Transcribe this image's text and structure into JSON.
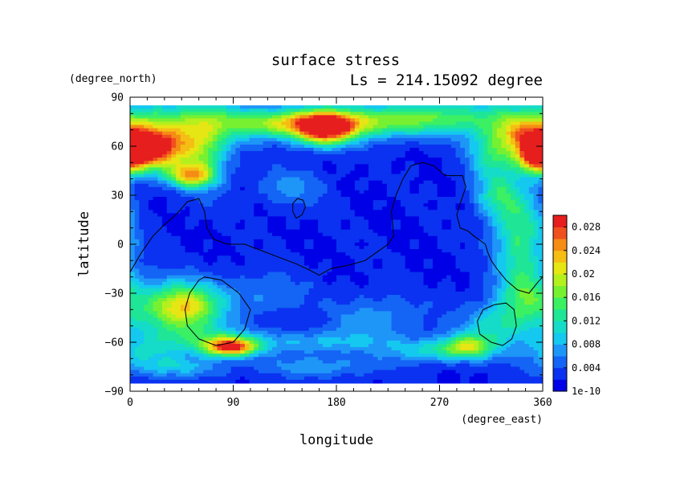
{
  "chart_data": {
    "type": "heatmap",
    "title": "surface stress",
    "subtitle": "Ls = 214.15092 degree",
    "xlabel": "longitude",
    "ylabel": "latitude",
    "x_unit": "(degree_east)",
    "y_unit": "(degree_north)",
    "xlim": [
      0,
      360
    ],
    "ylim": [
      -90,
      90
    ],
    "data_lat_range": [
      -84,
      85
    ],
    "x_ticks": [
      0,
      90,
      180,
      270,
      360
    ],
    "y_ticks": [
      90,
      60,
      30,
      0,
      -30,
      -60,
      -90
    ],
    "colorbar": {
      "tick_labels": [
        "1e-10",
        "0.004",
        "0.008",
        "0.012",
        "0.016",
        "0.02",
        "0.024",
        "0.028"
      ],
      "min": 0,
      "max": 0.03,
      "levels": 15,
      "colors": [
        "#0000e6",
        "#0a32f0",
        "#1464f5",
        "#1e96f8",
        "#14c8f0",
        "#14dcc8",
        "#1ee696",
        "#3cf064",
        "#78f032",
        "#b4f01e",
        "#e6e614",
        "#f5be14",
        "#f58c14",
        "#f0501e",
        "#e61e1e"
      ]
    },
    "field": {
      "background": 0.002,
      "blobs": [
        {
          "lon": 20,
          "lat": 60,
          "value": 0.021,
          "w": 25,
          "h": 9
        },
        {
          "lon": 5,
          "lat": 55,
          "value": 0.014,
          "w": 22,
          "h": 8
        },
        {
          "lon": 50,
          "lat": 75,
          "value": 0.01,
          "w": 45,
          "h": 10
        },
        {
          "lon": 65,
          "lat": 55,
          "value": 0.01,
          "w": 15,
          "h": 15
        },
        {
          "lon": 52,
          "lat": 42,
          "value": 0.017,
          "w": 14,
          "h": 5
        },
        {
          "lon": 170,
          "lat": 70,
          "value": 0.022,
          "w": 18,
          "h": 7
        },
        {
          "lon": 140,
          "lat": 74,
          "value": 0.014,
          "w": 40,
          "h": 6
        },
        {
          "lon": 210,
          "lat": 75,
          "value": 0.01,
          "w": 45,
          "h": 7
        },
        {
          "lon": 290,
          "lat": 78,
          "value": 0.01,
          "w": 55,
          "h": 8
        },
        {
          "lon": 340,
          "lat": 68,
          "value": 0.011,
          "w": 18,
          "h": 7
        },
        {
          "lon": 355,
          "lat": 55,
          "value": 0.016,
          "w": 10,
          "h": 8
        },
        {
          "lon": 315,
          "lat": 55,
          "value": 0.009,
          "w": 15,
          "h": 10
        },
        {
          "lon": 140,
          "lat": 35,
          "value": 0.005,
          "w": 20,
          "h": 8
        },
        {
          "lon": 320,
          "lat": 30,
          "value": 0.009,
          "w": 14,
          "h": 10
        },
        {
          "lon": 340,
          "lat": 5,
          "value": 0.012,
          "w": 16,
          "h": 20
        },
        {
          "lon": 50,
          "lat": -38,
          "value": 0.014,
          "w": 22,
          "h": 10
        },
        {
          "lon": 30,
          "lat": -40,
          "value": 0.008,
          "w": 30,
          "h": 12
        },
        {
          "lon": 88,
          "lat": -63,
          "value": 0.024,
          "w": 16,
          "h": 4
        },
        {
          "lon": 65,
          "lat": -58,
          "value": 0.008,
          "w": 30,
          "h": 6
        },
        {
          "lon": 35,
          "lat": -75,
          "value": 0.007,
          "w": 30,
          "h": 5
        },
        {
          "lon": 10,
          "lat": -65,
          "value": 0.006,
          "w": 20,
          "h": 6
        },
        {
          "lon": 165,
          "lat": -60,
          "value": 0.006,
          "w": 45,
          "h": 5
        },
        {
          "lon": 165,
          "lat": -75,
          "value": 0.005,
          "w": 40,
          "h": 5
        },
        {
          "lon": 270,
          "lat": -65,
          "value": 0.009,
          "w": 30,
          "h": 5
        },
        {
          "lon": 295,
          "lat": -62,
          "value": 0.011,
          "w": 14,
          "h": 5
        },
        {
          "lon": 320,
          "lat": -50,
          "value": 0.009,
          "w": 22,
          "h": 10
        },
        {
          "lon": 345,
          "lat": -30,
          "value": 0.009,
          "w": 16,
          "h": 12
        },
        {
          "lon": 215,
          "lat": -45,
          "value": 0.005,
          "w": 30,
          "h": 10
        },
        {
          "lon": 120,
          "lat": -30,
          "value": 0.004,
          "w": 25,
          "h": 10
        }
      ]
    },
    "contours": [
      {
        "name": "main",
        "points": [
          [
            0,
            -17
          ],
          [
            10,
            -5
          ],
          [
            20,
            5
          ],
          [
            30,
            12
          ],
          [
            40,
            18
          ],
          [
            50,
            26
          ],
          [
            60,
            28
          ],
          [
            65,
            20
          ],
          [
            67,
            10
          ],
          [
            73,
            3
          ],
          [
            85,
            0
          ],
          [
            100,
            0
          ],
          [
            115,
            -4
          ],
          [
            130,
            -8
          ],
          [
            145,
            -12
          ],
          [
            157,
            -16
          ],
          [
            165,
            -19
          ],
          [
            175,
            -15
          ],
          [
            190,
            -13
          ],
          [
            205,
            -10
          ],
          [
            215,
            -5
          ],
          [
            225,
            0
          ],
          [
            230,
            5
          ],
          [
            228,
            20
          ],
          [
            232,
            30
          ],
          [
            238,
            40
          ],
          [
            245,
            48
          ],
          [
            255,
            50
          ],
          [
            265,
            48
          ],
          [
            275,
            42
          ],
          [
            290,
            42
          ],
          [
            293,
            35
          ],
          [
            288,
            25
          ],
          [
            285,
            18
          ],
          [
            288,
            10
          ],
          [
            295,
            8
          ],
          [
            300,
            5
          ],
          [
            310,
            0
          ],
          [
            312,
            -5
          ],
          [
            315,
            -10
          ],
          [
            320,
            -15
          ],
          [
            328,
            -22
          ],
          [
            338,
            -28
          ],
          [
            348,
            -30
          ],
          [
            356,
            -23
          ],
          [
            360,
            -20
          ]
        ]
      },
      {
        "name": "island",
        "points": [
          [
            142,
            20
          ],
          [
            145,
            16
          ],
          [
            150,
            18
          ],
          [
            153,
            23
          ],
          [
            151,
            27
          ],
          [
            146,
            28
          ],
          [
            142,
            25
          ],
          [
            142,
            20
          ]
        ]
      },
      {
        "name": "basin-west",
        "points": [
          [
            65,
            -20
          ],
          [
            80,
            -22
          ],
          [
            95,
            -30
          ],
          [
            105,
            -40
          ],
          [
            100,
            -52
          ],
          [
            90,
            -60
          ],
          [
            75,
            -62
          ],
          [
            60,
            -58
          ],
          [
            50,
            -50
          ],
          [
            48,
            -40
          ],
          [
            52,
            -30
          ],
          [
            60,
            -22
          ],
          [
            65,
            -20
          ]
        ]
      },
      {
        "name": "basin-east",
        "points": [
          [
            318,
            -37
          ],
          [
            328,
            -36
          ],
          [
            335,
            -40
          ],
          [
            337,
            -50
          ],
          [
            333,
            -58
          ],
          [
            325,
            -62
          ],
          [
            315,
            -60
          ],
          [
            305,
            -55
          ],
          [
            303,
            -47
          ],
          [
            308,
            -40
          ],
          [
            318,
            -37
          ]
        ]
      }
    ]
  }
}
